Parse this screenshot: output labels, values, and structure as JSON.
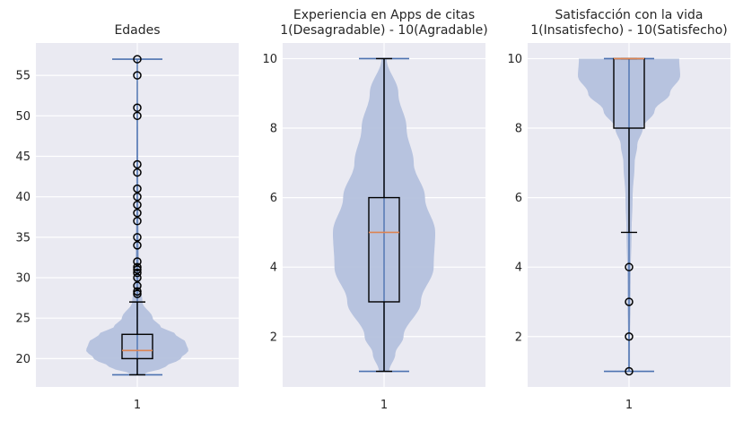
{
  "chart_data": [
    {
      "type": "violin+box",
      "title": [
        "Edades"
      ],
      "xtick": "1",
      "ylim": [
        16.5,
        59
      ],
      "yticks": [
        20,
        25,
        30,
        35,
        40,
        45,
        50,
        55
      ],
      "ytick_labels": [
        "20",
        "25",
        "30",
        "35",
        "40",
        "45",
        "50",
        "55"
      ],
      "box": {
        "q1": 20,
        "median": 21,
        "q3": 23,
        "whisker_low": 18,
        "whisker_high": 27
      },
      "outliers": [
        28,
        28.3,
        29,
        30,
        30.6,
        31,
        31.3,
        32,
        34,
        35,
        37,
        38,
        39,
        40,
        41,
        43,
        44,
        50,
        51,
        55,
        57
      ],
      "violin": {
        "min": 18,
        "max": 57,
        "profile": [
          [
            18,
            0.1
          ],
          [
            19,
            0.55
          ],
          [
            20,
            0.85
          ],
          [
            21,
            1.0
          ],
          [
            22,
            0.95
          ],
          [
            23,
            0.75
          ],
          [
            24,
            0.45
          ],
          [
            25,
            0.3
          ],
          [
            27,
            0.1
          ],
          [
            29,
            0.06
          ],
          [
            32,
            0.035
          ],
          [
            38,
            0.025
          ],
          [
            45,
            0.018
          ],
          [
            52,
            0.012
          ],
          [
            57,
            0.006
          ]
        ]
      },
      "colors": {
        "box": "#000000",
        "median": "#dd8452",
        "violin": "#b4c1dd",
        "vline": "#4c72b0"
      }
    },
    {
      "type": "violin+box",
      "title": [
        "Experiencia en Apps de citas",
        "1(Desagradable) - 10(Agradable)"
      ],
      "xtick": "1",
      "ylim": [
        0.55,
        10.45
      ],
      "yticks": [
        2,
        4,
        6,
        8,
        10
      ],
      "ytick_labels": [
        "2",
        "4",
        "6",
        "8",
        "10"
      ],
      "box": {
        "q1": 3,
        "median": 5,
        "q3": 6,
        "whisker_low": 1,
        "whisker_high": 10
      },
      "outliers": [],
      "violin": {
        "min": 1,
        "max": 10,
        "profile": [
          [
            1,
            0.1
          ],
          [
            1.5,
            0.22
          ],
          [
            2,
            0.38
          ],
          [
            3,
            0.72
          ],
          [
            4,
            0.97
          ],
          [
            5,
            1.0
          ],
          [
            6,
            0.8
          ],
          [
            7,
            0.58
          ],
          [
            8,
            0.44
          ],
          [
            9,
            0.28
          ],
          [
            10,
            0.05
          ]
        ]
      },
      "colors": {
        "box": "#000000",
        "median": "#dd8452",
        "violin": "#b4c1dd",
        "vline": "#4c72b0"
      }
    },
    {
      "type": "violin+box",
      "title": [
        "Satisfacción con la vida",
        "1(Insatisfecho) - 10(Satisfecho)"
      ],
      "xtick": "1",
      "ylim": [
        0.55,
        10.45
      ],
      "yticks": [
        2,
        4,
        6,
        8,
        10
      ],
      "ytick_labels": [
        "2",
        "4",
        "6",
        "8",
        "10"
      ],
      "box": {
        "q1": 8,
        "median": 10,
        "q3": 10,
        "whisker_low": 5,
        "whisker_high": 10
      },
      "outliers": [
        1,
        2,
        3,
        4
      ],
      "violin": {
        "min": 1,
        "max": 10,
        "profile": [
          [
            1,
            0.02
          ],
          [
            2,
            0.02
          ],
          [
            3,
            0.03
          ],
          [
            4,
            0.035
          ],
          [
            5,
            0.05
          ],
          [
            6,
            0.07
          ],
          [
            7,
            0.11
          ],
          [
            7.5,
            0.16
          ],
          [
            8,
            0.27
          ],
          [
            8.5,
            0.5
          ],
          [
            9,
            0.8
          ],
          [
            9.5,
            1.0
          ],
          [
            10,
            0.98
          ]
        ]
      },
      "colors": {
        "box": "#000000",
        "median": "#dd8452",
        "violin": "#b4c1dd",
        "vline": "#4c72b0"
      }
    }
  ]
}
